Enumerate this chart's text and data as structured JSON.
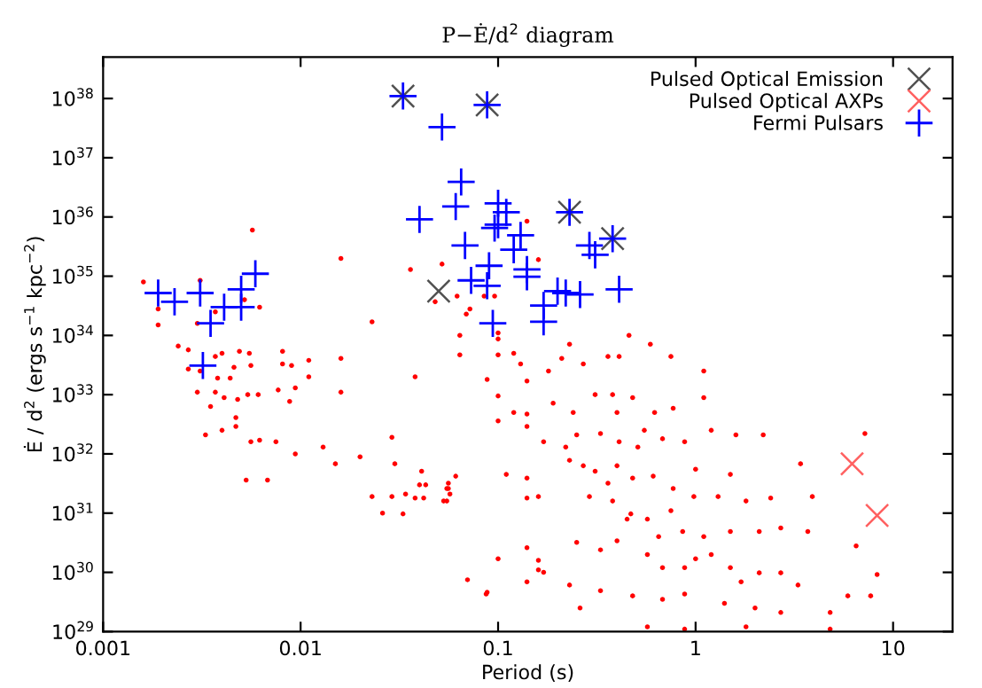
{
  "chart_data": {
    "type": "scatter",
    "title": "P−Ė/d$^{2}$ diagram",
    "xlabel": "Period (s)",
    "ylabel": "Ė / d$^{2}$ (ergs s$^{−1}$ kpc$^{−2}$)",
    "log": "xy",
    "xlim": [
      0.001,
      20
    ],
    "ylim": [
      1e+29,
      5e+38
    ],
    "xticks": [
      0.001,
      0.01,
      0.1,
      1,
      10
    ],
    "yticks": [
      {
        "value": 1e+29,
        "label": "10$^{29}$"
      },
      {
        "value": 1e+30,
        "label": "10$^{30}$"
      },
      {
        "value": 1e+31,
        "label": "10$^{31}$"
      },
      {
        "value": 1e+32,
        "label": "10$^{32}$"
      },
      {
        "value": 1e+33,
        "label": "10$^{33}$"
      },
      {
        "value": 1e+34,
        "label": "10$^{34}$"
      },
      {
        "value": 1e+35,
        "label": "10$^{35}$"
      },
      {
        "value": 1e+36,
        "label": "10$^{36}$"
      },
      {
        "value": 1e+37,
        "label": "10$^{37}$"
      },
      {
        "value": 1e+38,
        "label": "10$^{38}$"
      }
    ],
    "grid": false,
    "legend": "top right",
    "series": [
      {
        "color": "#ff0000",
        "marker": "circle",
        "x": [
          0.0016,
          0.0019,
          0.0019,
          0.0031,
          0.0037,
          0.003,
          0.0024,
          0.0027,
          0.0027,
          0.0031,
          0.0037,
          0.004,
          0.0038,
          0.0044,
          0.0046,
          0.0049,
          0.0055,
          0.0056,
          0.003,
          0.0037,
          0.0041,
          0.0048,
          0.0054,
          0.0061,
          0.0035,
          0.0047,
          0.0047,
          0.0033,
          0.004,
          0.0056,
          0.0062,
          0.0053,
          0.0068,
          0.0081,
          0.0081,
          0.009,
          0.011,
          0.011,
          0.0094,
          0.0077,
          0.0088,
          0.016,
          0.016,
          0.0075,
          0.0094,
          0.013,
          0.015,
          0.02,
          0.023,
          0.029,
          0.023,
          0.029,
          0.026,
          0.03,
          0.033,
          0.034,
          0.038,
          0.038,
          0.041,
          0.042,
          0.043,
          0.04,
          0.055,
          0.056,
          0.057,
          0.056,
          0.061,
          0.048,
          0.062,
          0.064,
          0.064,
          0.069,
          0.072,
          0.07,
          0.088,
          0.1,
          0.14,
          0.16,
          0.14,
          0.17,
          0.088,
          0.1,
          0.1,
          0.1,
          0.11,
          0.12,
          0.12,
          0.13,
          0.14,
          0.14,
          0.14,
          0.16,
          0.14,
          0.17,
          0.085,
          0.096,
          0.1,
          0.1,
          0.0057,
          0.016,
          0.036,
          0.052,
          0.14,
          0.16,
          0.59,
          0.75,
          0.0062,
          0.0052,
          0.14,
          0.18,
          0.21,
          0.23,
          0.27,
          0.36,
          0.41,
          0.46,
          1.1,
          0.19,
          0.24,
          0.31,
          0.38,
          0.48,
          0.62,
          0.77,
          1.1,
          0.25,
          0.33,
          0.41,
          0.51,
          0.68,
          0.88,
          1.2,
          1.6,
          2.2,
          3.4,
          7.2,
          0.23,
          0.31,
          0.4,
          0.48,
          0.61,
          0.77,
          0.98,
          1.3,
          1.8,
          2.4,
          3.9,
          0.29,
          0.38,
          0.47,
          0.57,
          0.75,
          0.86,
          1.1,
          1.5,
          2.1,
          2.7,
          3.7,
          6.5,
          0.25,
          0.33,
          0.4,
          0.57,
          0.68,
          0.88,
          1.2,
          1.5,
          2.1,
          2.7,
          3.3,
          8.3,
          0.23,
          0.33,
          0.48,
          0.68,
          0.88,
          1.4,
          2.0,
          2.7,
          4.8,
          5.9,
          7.7,
          0.26,
          0.57,
          0.88,
          1.8,
          4.8,
          0.087,
          0.16,
          0.055,
          0.053,
          0.22,
          0.36,
          0.55,
          1.0,
          1.5,
          0.45,
          0.65,
          1.0,
          1.7,
          0.4,
          0.27
        ],
        "values": [
          8e+34,
          2.8e+34,
          1.5e+34,
          8.5e+34,
          2.5e+34,
          1.6e+34,
          6.6e+33,
          5.7e+33,
          2.7e+33,
          2.5e+33,
          4.4e+33,
          5e+33,
          1.9e+33,
          1.9e+33,
          2.9e+33,
          5.4e+33,
          5e+33,
          3.1e+33,
          1.1e+33,
          1.1e+33,
          8.9e+32,
          8.3e+32,
          1e+33,
          1e+33,
          6.3e+32,
          4.1e+32,
          2.9e+32,
          2.1e+32,
          2.5e+32,
          1.6e+32,
          1.7e+32,
          3.6e+31,
          3.6e+31,
          5.4e+33,
          3.3e+33,
          3.1e+33,
          3.8e+33,
          2e+33,
          1.3e+33,
          1.2e+33,
          7.7e+32,
          1.1e+33,
          4.1e+33,
          1.6e+32,
          1e+32,
          1.3e+32,
          6.8e+31,
          8.9e+31,
          1.7e+34,
          1.9e+32,
          1.9e+31,
          1.9e+31,
          1e+31,
          6.8e+31,
          9.7e+30,
          2.1e+31,
          2e+33,
          1.8e+31,
          5.1e+31,
          1.8e+31,
          3e+31,
          3e+31,
          1.6e+31,
          2.6e+31,
          2.1e+31,
          3.2e+31,
          4.2e+31,
          3.7e+34,
          4.6e+34,
          1e+34,
          4.7e+33,
          2.3e+34,
          2.8e+34,
          7.5e+29,
          4.6e+29,
          1.7e+30,
          2.6e+30,
          1.6e+30,
          6.9e+29,
          1e+30,
          1.8e+33,
          4.7e+33,
          9.5e+32,
          3.6e+32,
          4.5e+31,
          5e+32,
          5e+33,
          3.3e+33,
          4.7e+32,
          3.9e+31,
          1.8e+31,
          1.9e+31,
          2.9e+32,
          1.6e+32,
          4.6e+34,
          4.6e+34,
          1.1e+34,
          8.7e+33,
          6e+35,
          2e+35,
          1.3e+35,
          1.6e+35,
          8.5e+35,
          1.9e+35,
          7.1e+33,
          4.4e+33,
          3e+34,
          4e+34,
          1.7e+33,
          2.5e+33,
          4.1e+33,
          7.1e+33,
          3.3e+33,
          4.4e+33,
          4.4e+33,
          1e+34,
          2.5e+33,
          7.2e+32,
          5e+32,
          1e+33,
          1e+33,
          8.9e+32,
          5e+32,
          5.9e+32,
          8.9e+32,
          2.1e+32,
          2.2e+32,
          1.6e+32,
          1.3e+32,
          1.8e+32,
          1.6e+32,
          2.5e+32,
          2.1e+32,
          2.1e+32,
          6.8e+31,
          2.2e+32,
          7.8e+31,
          5.1e+31,
          6.3e+31,
          3.9e+31,
          4.2e+31,
          2.6e+31,
          1.9e+31,
          1.9e+31,
          1.6e+31,
          1.8e+31,
          1.9e+31,
          1.9e+31,
          1.6e+31,
          9.7e+30,
          7.9e+30,
          1.1e+31,
          4.9e+30,
          4e+30,
          4.9e+30,
          4.9e+30,
          5.6e+30,
          4.9e+30,
          2.8e+30,
          3.2e+30,
          2.4e+30,
          3.4e+30,
          2e+30,
          1.2e+30,
          1.2e+30,
          2e+30,
          1.2e+30,
          9.8e+29,
          9.8e+29,
          6.1e+29,
          9.2e+29,
          6.1e+29,
          4.9e+29,
          4e+29,
          3.5e+29,
          4.3e+29,
          3e+29,
          2.5e+29,
          2.1e+29,
          2.1e+29,
          4e+29,
          4e+29,
          2.5e+29,
          1.2e+29,
          1.1e+29,
          1.2e+29,
          1.1e+29,
          4.3e+29,
          1.1e+30,
          2.6e+31,
          1.6e+31,
          1.3e+32,
          3.2e+31,
          2.5e+32,
          5.5e+31,
          4.5e+31,
          7.9e+30,
          4e+30,
          1.7e+30,
          6.9e+29,
          5e+32,
          6.3e+31
        ]
      },
      {
        "name": "Pulsed Optical Emission",
        "color": "#505050",
        "marker": "cross",
        "x": [
          0.033,
          0.088,
          0.23,
          0.38,
          0.05
        ],
        "values": [
          1.1e+38,
          7.8e+37,
          1.2e+36,
          4.3e+35,
          5.6e+34
        ]
      },
      {
        "name": "Pulsed Optical AXPs",
        "color": "#ff6060",
        "marker": "cross",
        "x": [
          6.2,
          8.3
        ],
        "values": [
          6.8e+31,
          9.1e+30
        ]
      },
      {
        "name": "Fermi Pulsars",
        "color": "#0000ff",
        "marker": "plus",
        "x": [
          0.033,
          0.088,
          0.052,
          0.065,
          0.04,
          0.061,
          0.1,
          0.11,
          0.23,
          0.096,
          0.1,
          0.13,
          0.38,
          0.29,
          0.31,
          0.12,
          0.068,
          0.14,
          0.14,
          0.09,
          0.073,
          0.088,
          0.2,
          0.22,
          0.26,
          0.41,
          0.17,
          0.17,
          0.094,
          0.0019,
          0.0023,
          0.0031,
          0.0041,
          0.005,
          0.005,
          0.0059,
          0.0035,
          0.0032
        ],
        "values": [
          1.1e+38,
          7.8e+37,
          3.3e+37,
          3.9e+36,
          9.1e+35,
          1.5e+36,
          1.7e+36,
          1.2e+36,
          1.2e+36,
          6.5e+35,
          7.4e+35,
          4.9e+35,
          4.3e+35,
          3.3e+35,
          2.3e+35,
          2.8e+35,
          3.3e+35,
          1.3e+35,
          9.8e+34,
          1.5e+35,
          8.5e+34,
          6.9e+34,
          5.6e+34,
          5.2e+34,
          4.9e+34,
          6e+34,
          3.2e+34,
          1.7e+34,
          1.6e+34,
          5.2e+34,
          3.7e+34,
          5.2e+34,
          3e+34,
          6e+34,
          3e+34,
          1.1e+35,
          1.6e+34,
          3.1e+33
        ]
      }
    ]
  }
}
